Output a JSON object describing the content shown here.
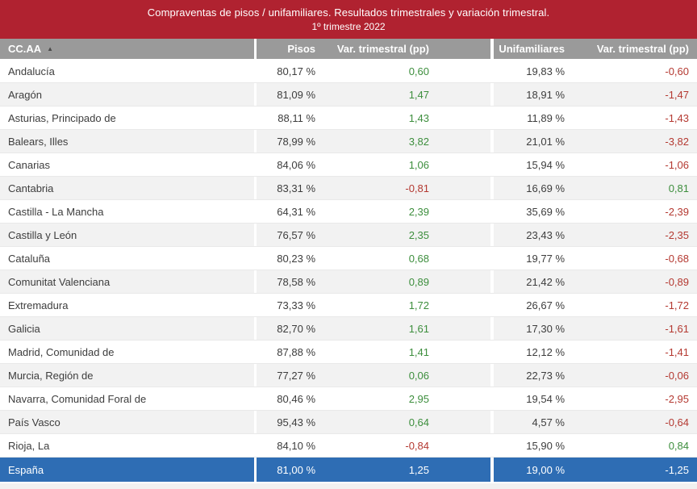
{
  "colors": {
    "title_bar_bg": "#B02230",
    "column_header_bg": "#9A9A9A",
    "row_alt_bg": "#F2F2F2",
    "total_row_bg": "#2E6DB4",
    "positive_value": "#3D8E3D",
    "negative_value": "#B43931"
  },
  "chart_data": {
    "type": "table",
    "title": "Compraventas de pisos / unifamiliares. Resultados trimestrales  y variación trimestral.",
    "subtitle": "1º trimestre 2022",
    "sort_icon": "▲",
    "columns": [
      "CC.AA",
      "Pisos",
      "Var. trimestral (pp)",
      "Unifamiliares",
      "Var. trimestral (pp)"
    ],
    "rows": [
      {
        "region": "Andalucía",
        "pisos": "80,17 %",
        "var_pisos": "0,60",
        "unifamiliares": "19,83 %",
        "var_unifamiliares": "-0,60"
      },
      {
        "region": "Aragón",
        "pisos": "81,09 %",
        "var_pisos": "1,47",
        "unifamiliares": "18,91 %",
        "var_unifamiliares": "-1,47"
      },
      {
        "region": "Asturias, Principado de",
        "pisos": "88,11 %",
        "var_pisos": "1,43",
        "unifamiliares": "11,89 %",
        "var_unifamiliares": "-1,43"
      },
      {
        "region": "Balears, Illes",
        "pisos": "78,99 %",
        "var_pisos": "3,82",
        "unifamiliares": "21,01 %",
        "var_unifamiliares": "-3,82"
      },
      {
        "region": "Canarias",
        "pisos": "84,06 %",
        "var_pisos": "1,06",
        "unifamiliares": "15,94 %",
        "var_unifamiliares": "-1,06"
      },
      {
        "region": "Cantabria",
        "pisos": "83,31 %",
        "var_pisos": "-0,81",
        "unifamiliares": "16,69 %",
        "var_unifamiliares": "0,81"
      },
      {
        "region": "Castilla - La Mancha",
        "pisos": "64,31 %",
        "var_pisos": "2,39",
        "unifamiliares": "35,69 %",
        "var_unifamiliares": "-2,39"
      },
      {
        "region": "Castilla y León",
        "pisos": "76,57 %",
        "var_pisos": "2,35",
        "unifamiliares": "23,43 %",
        "var_unifamiliares": "-2,35"
      },
      {
        "region": "Cataluña",
        "pisos": "80,23 %",
        "var_pisos": "0,68",
        "unifamiliares": "19,77 %",
        "var_unifamiliares": "-0,68"
      },
      {
        "region": "Comunitat Valenciana",
        "pisos": "78,58 %",
        "var_pisos": "0,89",
        "unifamiliares": "21,42 %",
        "var_unifamiliares": "-0,89"
      },
      {
        "region": "Extremadura",
        "pisos": "73,33 %",
        "var_pisos": "1,72",
        "unifamiliares": "26,67 %",
        "var_unifamiliares": "-1,72"
      },
      {
        "region": "Galicia",
        "pisos": "82,70 %",
        "var_pisos": "1,61",
        "unifamiliares": "17,30 %",
        "var_unifamiliares": "-1,61"
      },
      {
        "region": "Madrid, Comunidad de",
        "pisos": "87,88 %",
        "var_pisos": "1,41",
        "unifamiliares": "12,12 %",
        "var_unifamiliares": "-1,41"
      },
      {
        "region": "Murcia, Región de",
        "pisos": "77,27 %",
        "var_pisos": "0,06",
        "unifamiliares": "22,73 %",
        "var_unifamiliares": "-0,06"
      },
      {
        "region": "Navarra, Comunidad Foral de",
        "pisos": "80,46 %",
        "var_pisos": "2,95",
        "unifamiliares": "19,54 %",
        "var_unifamiliares": "-2,95"
      },
      {
        "region": "País Vasco",
        "pisos": "95,43 %",
        "var_pisos": "0,64",
        "unifamiliares": "4,57 %",
        "var_unifamiliares": "-0,64"
      },
      {
        "region": "Rioja, La",
        "pisos": "84,10 %",
        "var_pisos": "-0,84",
        "unifamiliares": "15,90 %",
        "var_unifamiliares": "0,84"
      }
    ],
    "total": {
      "region": "España",
      "pisos": "81,00 %",
      "var_pisos": "1,25",
      "unifamiliares": "19,00 %",
      "var_unifamiliares": "-1,25"
    }
  }
}
